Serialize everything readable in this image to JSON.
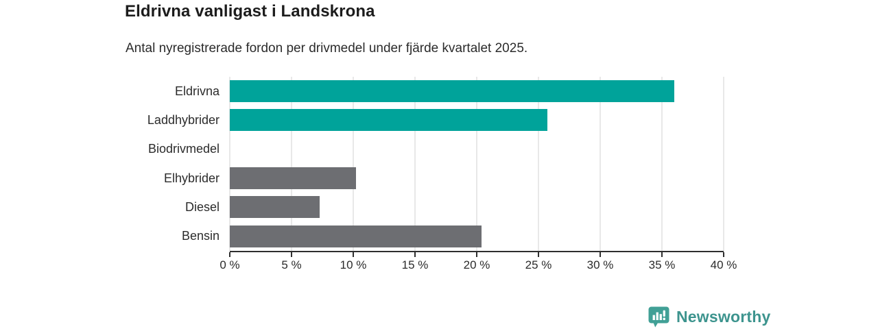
{
  "chart_data": {
    "type": "bar",
    "orientation": "horizontal",
    "title": "Eldrivna vanligast i Landskrona",
    "subtitle": "Antal nyregistrerade fordon per drivmedel under fjärde kvartalet 2025.",
    "categories": [
      "Eldrivna",
      "Laddhybrider",
      "Biodrivmedel",
      "Elhybrider",
      "Diesel",
      "Bensin"
    ],
    "values": [
      36.0,
      25.7,
      0,
      10.2,
      7.3,
      20.4
    ],
    "unit": "%",
    "bar_colors": [
      "#00a39a",
      "#00a39a",
      "#6d6e72",
      "#6d6e72",
      "#6d6e72",
      "#6d6e72"
    ],
    "x_ticks": [
      0,
      5,
      10,
      15,
      20,
      25,
      30,
      35,
      40
    ],
    "x_tick_labels": [
      "0 %",
      "5 %",
      "10 %",
      "15 %",
      "20 %",
      "25 %",
      "30 %",
      "35 %",
      "40 %"
    ],
    "xlim": [
      0,
      40
    ],
    "xlabel": "",
    "ylabel": "",
    "grid": "vertical",
    "legend": "none"
  },
  "footer": {
    "brand": "Newsworthy",
    "logo_icon": "bar-chart-speech-bubble-icon"
  },
  "colors": {
    "accent_teal": "#00a39a",
    "neutral_gray": "#6d6e72",
    "brand_teal": "#3d948e",
    "axis": "#2e2e2e",
    "gridline": "#e8e8e8",
    "title_text": "#1c1c1c",
    "label_text": "#2b2b2b",
    "background": "#ffffff"
  }
}
